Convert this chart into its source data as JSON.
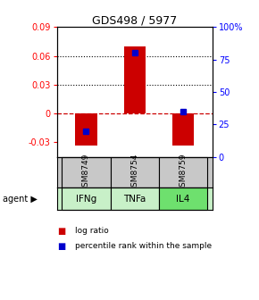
{
  "title": "GDS498 / 5977",
  "samples": [
    "GSM8749",
    "GSM8754",
    "GSM8759"
  ],
  "agents": [
    "IFNg",
    "TNFa",
    "IL4"
  ],
  "log_ratios": [
    -0.033,
    0.07,
    -0.033
  ],
  "percentile_ranks": [
    20,
    80,
    35
  ],
  "ylim_left": [
    -0.045,
    0.09
  ],
  "ylim_right": [
    0,
    100
  ],
  "left_yticks": [
    -0.03,
    0,
    0.03,
    0.06,
    0.09
  ],
  "right_yticks": [
    0,
    25,
    50,
    75,
    100
  ],
  "dotted_lines": [
    0.03,
    0.06
  ],
  "bar_color": "#cc0000",
  "dot_color": "#0000cc",
  "sample_bg": "#c8c8c8",
  "agent_bg_light": "#b8f0b8",
  "agent_bg_dark": "#68d868",
  "agent_border": "#000000",
  "sample_border": "#000000",
  "legend_bar_label": "log ratio",
  "legend_dot_label": "percentile rank within the sample",
  "bar_width": 0.45,
  "plot_bg": "#ffffff",
  "outer_bg": "#ffffff",
  "agent_colors": [
    "#c8f0c8",
    "#c8f0c8",
    "#6ee06e"
  ]
}
